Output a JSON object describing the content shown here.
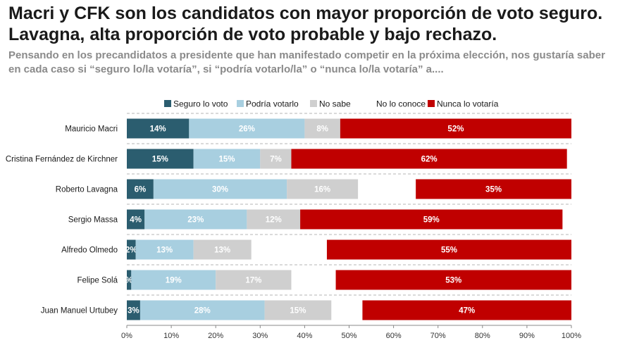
{
  "chart_data": {
    "type": "bar",
    "orientation": "horizontal",
    "stacked": true,
    "title": "Macri y CFK son los candidatos con mayor proporción de voto seguro. Lavagna, alta proporción de voto probable y bajo rechazo.",
    "subtitle": "Pensando en los precandidatos a presidente que han manifestado competir en la próxima elección, nos gustaría saber en cada caso si “seguro lo/la votaría”, si “podría votarlo/la” o “nunca lo/la votaría” a....",
    "xlabel": "",
    "ylabel": "",
    "xlim": [
      0,
      100
    ],
    "x_ticks": [
      "0%",
      "10%",
      "20%",
      "30%",
      "40%",
      "50%",
      "60%",
      "70%",
      "80%",
      "90%",
      "100%"
    ],
    "legend_position": "top",
    "categories": [
      "Mauricio Macri",
      "Cristina Fernández de Kirchner",
      "Roberto Lavagna",
      "Sergio Massa",
      "Alfredo Olmedo",
      "Felipe Solá",
      "Juan Manuel Urtubey"
    ],
    "series": [
      {
        "name": "Seguro lo voto",
        "color": "#2b5d6f",
        "label_color": "#ffffff",
        "values": [
          14,
          15,
          6,
          4,
          2,
          1,
          3
        ],
        "labels": [
          "14%",
          "15%",
          "6%",
          "4%",
          "2%",
          "%",
          "3%"
        ]
      },
      {
        "name": "Podría votarlo",
        "color": "#a8cfe0",
        "label_color": "#ffffff",
        "values": [
          26,
          15,
          30,
          23,
          13,
          19,
          28
        ],
        "labels": [
          "26%",
          "15%",
          "30%",
          "23%",
          "13%",
          "19%",
          "28%"
        ]
      },
      {
        "name": "No sabe",
        "color": "#cfcfcf",
        "label_color": "#ffffff",
        "values": [
          8,
          7,
          16,
          12,
          13,
          17,
          15
        ],
        "labels": [
          "8%",
          "7%",
          "16%",
          "12%",
          "13%",
          "17%",
          "15%"
        ]
      },
      {
        "name": "No lo conoce",
        "color": "#ffffff",
        "label_color": "#ffffff",
        "values": [
          0,
          0,
          13,
          0,
          17,
          10,
          7
        ],
        "labels": [
          "",
          "",
          "",
          "",
          "",
          "",
          ""
        ]
      },
      {
        "name": "Nunca lo votaría",
        "color": "#c00000",
        "label_color": "#ffffff",
        "values": [
          52,
          62,
          35,
          59,
          55,
          53,
          47
        ],
        "labels": [
          "52%",
          "62%",
          "35%",
          "59%",
          "55%",
          "53%",
          "47%"
        ]
      }
    ]
  }
}
